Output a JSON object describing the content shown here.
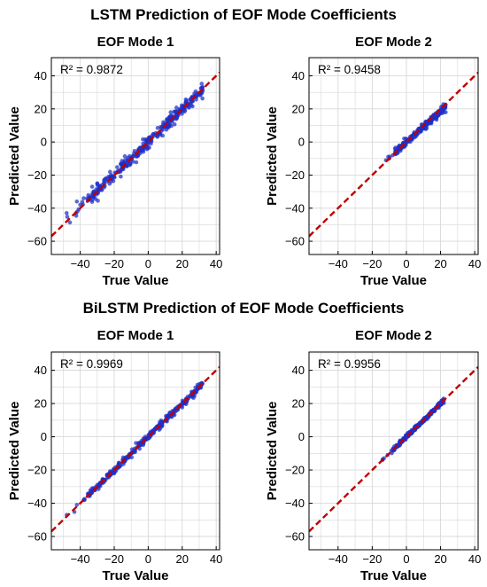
{
  "sections": [
    {
      "title": "LSTM Prediction of EOF Mode Coefficients"
    },
    {
      "title": "BiLSTM Prediction of EOF Mode Coefficients"
    }
  ],
  "colors": {
    "points": "#1f2fc8",
    "reference_line": "#c00000",
    "grid": "#d8d8d8",
    "frame": "#000000",
    "background": "#ffffff"
  },
  "chart_data": [
    {
      "type": "scatter",
      "section": "LSTM Prediction of EOF Mode Coefficients",
      "title": "EOF Mode 1",
      "xlabel": "True Value",
      "ylabel": "Predicted Value",
      "annotation": "R² = 0.9872",
      "xlim": [
        -57,
        42
      ],
      "ylim": [
        -68,
        51
      ],
      "xticks": [
        -40,
        -20,
        0,
        20,
        40
      ],
      "xtick_labels": [
        "−40",
        "−20",
        "0",
        "20",
        "40"
      ],
      "yticks": [
        -60,
        -40,
        -20,
        0,
        20,
        40
      ],
      "ytick_labels": [
        "−60",
        "−40",
        "−20",
        "0",
        "20",
        "40"
      ],
      "grid": true,
      "reference_line": "y = x",
      "true_range": [
        -48,
        32
      ],
      "slope": 0.985,
      "scatter_sd": 1.8,
      "n_points": 320,
      "points": [
        [
          -48,
          -43
        ],
        [
          -42,
          -36
        ],
        [
          -40,
          -38
        ],
        [
          -38,
          -34
        ],
        [
          -33,
          -27
        ],
        [
          -31,
          -31
        ],
        [
          -30,
          -25
        ],
        [
          -28,
          -27
        ],
        [
          -25,
          -22
        ],
        [
          -22,
          -24
        ],
        [
          -20,
          -21
        ],
        [
          -17,
          -18
        ],
        [
          -14,
          -13
        ],
        [
          -10,
          -11
        ],
        [
          -6,
          -5
        ],
        [
          -2,
          -2
        ],
        [
          2,
          2
        ],
        [
          6,
          5
        ],
        [
          10,
          10
        ],
        [
          14,
          13
        ],
        [
          18,
          18
        ],
        [
          22,
          22
        ],
        [
          26,
          25
        ],
        [
          30,
          29
        ],
        [
          32,
          31
        ]
      ]
    },
    {
      "type": "scatter",
      "section": "LSTM Prediction of EOF Mode Coefficients",
      "title": "EOF Mode 2",
      "xlabel": "True Value",
      "ylabel": "Predicted Value",
      "annotation": "R² = 0.9458",
      "xlim": [
        -57,
        42
      ],
      "ylim": [
        -68,
        51
      ],
      "xticks": [
        -40,
        -20,
        0,
        20,
        40
      ],
      "xtick_labels": [
        "−40",
        "−20",
        "0",
        "20",
        "40"
      ],
      "yticks": [
        -60,
        -40,
        -20,
        0,
        20,
        40
      ],
      "ytick_labels": [
        "−60",
        "−40",
        "−20",
        "0",
        "20",
        "40"
      ],
      "grid": true,
      "reference_line": "y = x",
      "true_range": [
        -12,
        23
      ],
      "slope": 0.93,
      "scatter_sd": 1.0,
      "n_points": 260,
      "points": [
        [
          -12,
          -11
        ],
        [
          -10,
          -10
        ],
        [
          -8,
          -8
        ],
        [
          -5,
          -5
        ],
        [
          -2,
          -2
        ],
        [
          0,
          0
        ],
        [
          3,
          3
        ],
        [
          6,
          5
        ],
        [
          9,
          8
        ],
        [
          12,
          11
        ],
        [
          15,
          14
        ],
        [
          18,
          16
        ],
        [
          20,
          18
        ],
        [
          22,
          18
        ],
        [
          23,
          18
        ]
      ]
    },
    {
      "type": "scatter",
      "section": "BiLSTM Prediction of EOF Mode Coefficients",
      "title": "EOF Mode 1",
      "xlabel": "True Value",
      "ylabel": "Predicted Value",
      "annotation": "R² = 0.9969",
      "xlim": [
        -57,
        42
      ],
      "ylim": [
        -68,
        51
      ],
      "xticks": [
        -40,
        -20,
        0,
        20,
        40
      ],
      "xtick_labels": [
        "−40",
        "−20",
        "0",
        "20",
        "40"
      ],
      "yticks": [
        -60,
        -40,
        -20,
        0,
        20,
        40
      ],
      "ytick_labels": [
        "−60",
        "−40",
        "−20",
        "0",
        "20",
        "40"
      ],
      "grid": true,
      "reference_line": "y = x",
      "true_range": [
        -48,
        32
      ],
      "slope": 1.0,
      "scatter_sd": 1.0,
      "n_points": 320,
      "points": [
        [
          -48,
          -47
        ],
        [
          -42,
          -41
        ],
        [
          -38,
          -38
        ],
        [
          -33,
          -31
        ],
        [
          -30,
          -29
        ],
        [
          -26,
          -26
        ],
        [
          -22,
          -23
        ],
        [
          -18,
          -18
        ],
        [
          -14,
          -14
        ],
        [
          -10,
          -10
        ],
        [
          -6,
          -6
        ],
        [
          -2,
          -2
        ],
        [
          2,
          2
        ],
        [
          6,
          6
        ],
        [
          10,
          10
        ],
        [
          14,
          14
        ],
        [
          18,
          18
        ],
        [
          22,
          22
        ],
        [
          26,
          26
        ],
        [
          30,
          30
        ],
        [
          32,
          32
        ]
      ]
    },
    {
      "type": "scatter",
      "section": "BiLSTM Prediction of EOF Mode Coefficients",
      "title": "EOF Mode 2",
      "xlabel": "True Value",
      "ylabel": "Predicted Value",
      "annotation": "R² = 0.9956",
      "xlim": [
        -57,
        42
      ],
      "ylim": [
        -68,
        51
      ],
      "xticks": [
        -40,
        -20,
        0,
        20,
        40
      ],
      "xtick_labels": [
        "−40",
        "−20",
        "0",
        "20",
        "40"
      ],
      "yticks": [
        -60,
        -40,
        -20,
        0,
        20,
        40
      ],
      "ytick_labels": [
        "−60",
        "−40",
        "−20",
        "0",
        "20",
        "40"
      ],
      "grid": true,
      "reference_line": "y = x",
      "true_range": [
        -14,
        22
      ],
      "slope": 0.99,
      "scatter_sd": 0.6,
      "n_points": 260,
      "points": [
        [
          -14,
          -14
        ],
        [
          -11,
          -11
        ],
        [
          -8,
          -8
        ],
        [
          -5,
          -5
        ],
        [
          -2,
          -2
        ],
        [
          0,
          0
        ],
        [
          3,
          3
        ],
        [
          6,
          6
        ],
        [
          9,
          9
        ],
        [
          12,
          12
        ],
        [
          15,
          15
        ],
        [
          18,
          18
        ],
        [
          20,
          20
        ],
        [
          22,
          22
        ]
      ]
    }
  ]
}
